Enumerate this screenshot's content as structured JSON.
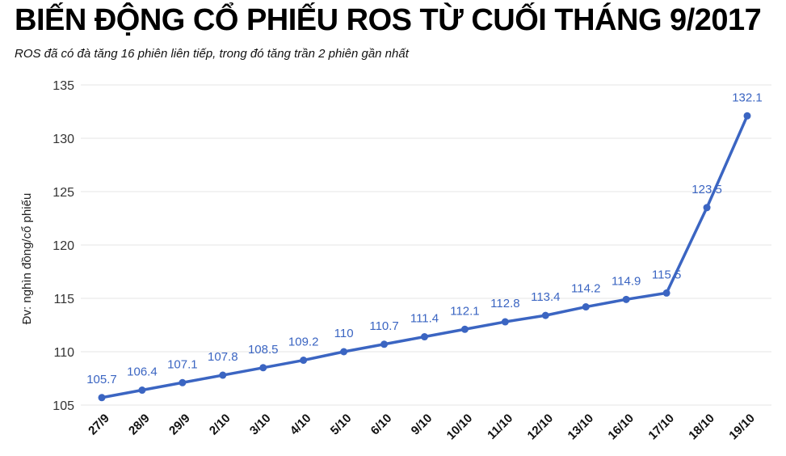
{
  "chart_data": {
    "type": "line",
    "title": "BIẾN ĐỘNG CỔ PHIẾU ROS TỪ CUỐI THÁNG 9/2017",
    "subtitle": "ROS đã có đà tăng 16 phiên liên tiếp, trong đó tăng trần 2 phiên gần nhất",
    "xlabel": "",
    "ylabel": "Đv: nghìn đồng/cổ phiếu",
    "ylim": [
      105,
      135
    ],
    "yticks": [
      105,
      110,
      115,
      120,
      125,
      130,
      135
    ],
    "grid": true,
    "categories": [
      "27/9",
      "28/9",
      "29/9",
      "2/10",
      "3/10",
      "4/10",
      "5/10",
      "6/10",
      "9/10",
      "10/10",
      "11/10",
      "12/10",
      "13/10",
      "16/10",
      "17/10",
      "18/10",
      "19/10"
    ],
    "values": [
      105.7,
      106.4,
      107.1,
      107.8,
      108.5,
      109.2,
      110,
      110.7,
      111.4,
      112.1,
      112.8,
      113.4,
      114.2,
      114.9,
      115.5,
      123.5,
      132.1
    ],
    "colors": {
      "line": "#3b65c2",
      "label": "#3b65c2",
      "grid": "#e6e6e6"
    }
  }
}
